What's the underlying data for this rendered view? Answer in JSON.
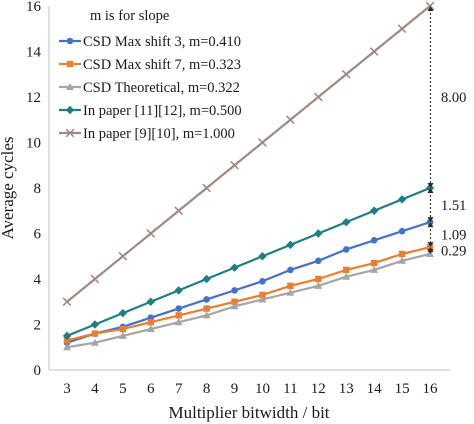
{
  "chart_data": {
    "type": "line",
    "title": "",
    "xlabel": "Multiplier bitwidth / bit",
    "ylabel": "Average cycles",
    "x": [
      3,
      4,
      5,
      6,
      7,
      8,
      9,
      10,
      11,
      12,
      13,
      14,
      15,
      16
    ],
    "xlim": [
      3,
      16
    ],
    "ylim": [
      0,
      16
    ],
    "y_ticks": [
      0,
      2,
      4,
      6,
      8,
      10,
      12,
      14,
      16
    ],
    "grid": false,
    "legend_position": "top-left",
    "legend_title": "m is for slope",
    "series": [
      {
        "name": "CSD Max shift 3, m=0.410",
        "color": "#4472c4",
        "marker": "circle",
        "values": [
          1.2,
          1.6,
          1.9,
          2.3,
          2.7,
          3.1,
          3.5,
          3.9,
          4.4,
          4.8,
          5.3,
          5.7,
          6.1,
          6.5
        ]
      },
      {
        "name": "CSD Max shift 7, m=0.323",
        "color": "#ed7d31",
        "marker": "square",
        "values": [
          1.3,
          1.6,
          1.8,
          2.1,
          2.4,
          2.7,
          3.0,
          3.3,
          3.7,
          4.0,
          4.4,
          4.7,
          5.1,
          5.4
        ]
      },
      {
        "name": "CSD Theoretical, m=0.322",
        "color": "#a5a5a5",
        "marker": "triangle",
        "values": [
          1.0,
          1.2,
          1.5,
          1.8,
          2.1,
          2.4,
          2.8,
          3.1,
          3.4,
          3.7,
          4.1,
          4.4,
          4.8,
          5.1
        ]
      },
      {
        "name": "In paper [11][12], m=0.500",
        "color": "#1f7f7f",
        "marker": "diamond",
        "values": [
          1.5,
          2.0,
          2.5,
          3.0,
          3.5,
          4.0,
          4.5,
          5.0,
          5.5,
          6.0,
          6.5,
          7.0,
          7.5,
          8.0
        ]
      },
      {
        "name": "In paper [9][10], m=1.000",
        "color": "#9e8a86",
        "marker": "x",
        "values": [
          3,
          4,
          5,
          6,
          7,
          8,
          9,
          10,
          11,
          12,
          13,
          14,
          15,
          16
        ]
      }
    ],
    "annotations": [
      {
        "text": "8.00",
        "from": 8.0,
        "to": 16.0
      },
      {
        "text": "1.51",
        "from": 6.5,
        "to": 8.0
      },
      {
        "text": "1.09",
        "from": 5.4,
        "to": 6.5
      },
      {
        "text": "0.29",
        "from": 5.1,
        "to": 5.4
      }
    ]
  }
}
